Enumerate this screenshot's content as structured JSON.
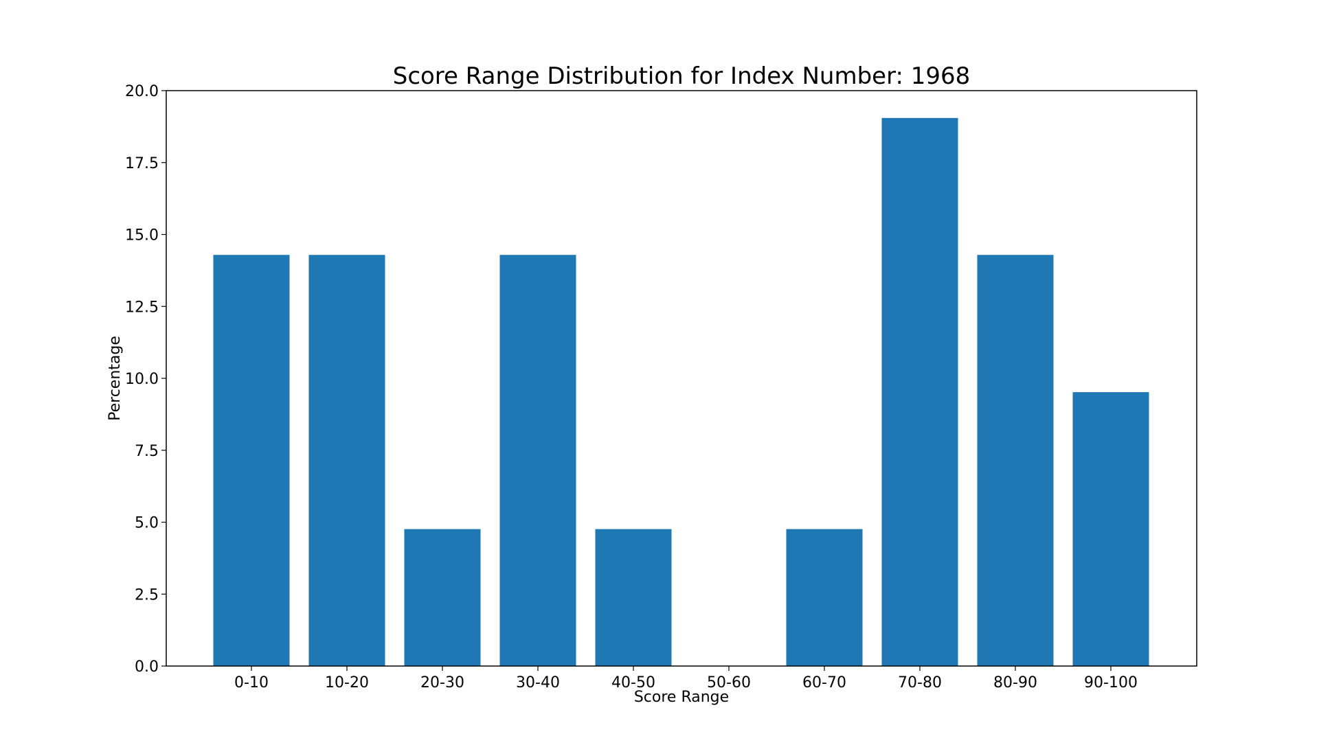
{
  "chart_data": {
    "type": "bar",
    "title": "Score Range Distribution for Index Number: 1968",
    "xlabel": "Score Range",
    "ylabel": "Percentage",
    "categories": [
      "0-10",
      "10-20",
      "20-30",
      "30-40",
      "40-50",
      "50-60",
      "60-70",
      "70-80",
      "80-90",
      "90-100"
    ],
    "values": [
      14.29,
      14.29,
      4.76,
      14.29,
      4.76,
      0.0,
      4.76,
      19.05,
      14.29,
      9.52
    ],
    "ylim": [
      0,
      20
    ],
    "yticks": [
      "0.0",
      "2.5",
      "5.0",
      "7.5",
      "10.0",
      "12.5",
      "15.0",
      "17.5",
      "20.0"
    ],
    "bar_color": "#1f77b4",
    "grid": false,
    "legend": "none"
  }
}
